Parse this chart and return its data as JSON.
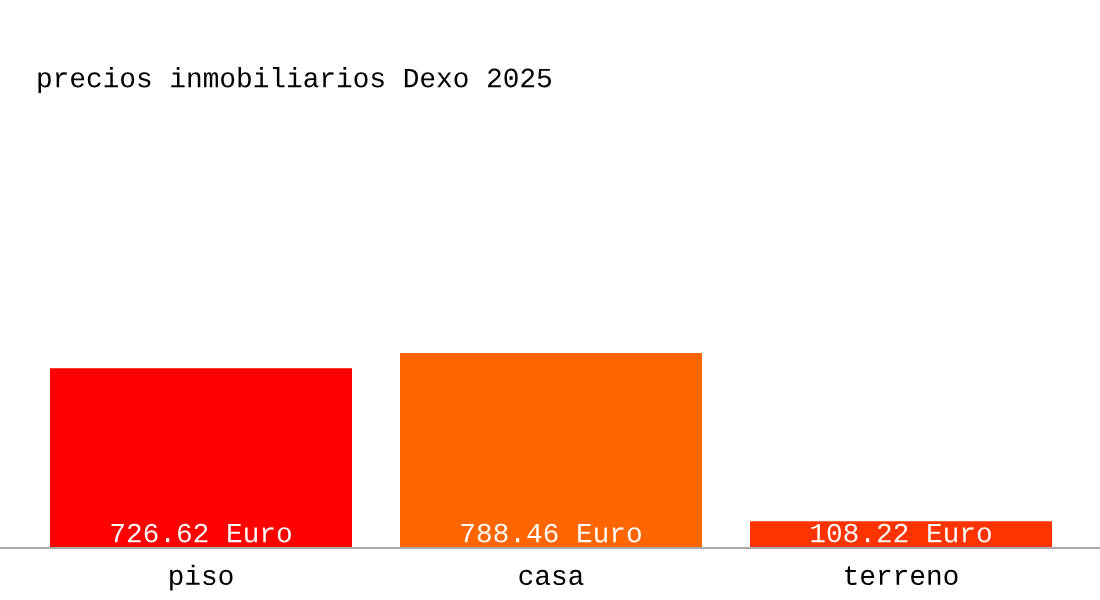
{
  "chart_data": {
    "type": "bar",
    "title": "precios inmobiliarios Dexo 2025",
    "categories": [
      "piso",
      "casa",
      "terreno"
    ],
    "values": [
      726.62,
      788.46,
      108.22
    ],
    "colors": [
      "#ff0000",
      "#ff6600",
      "#ff3300"
    ],
    "value_labels": [
      "726.62 Euro",
      "788.46 Euro",
      "108.22 Euro"
    ],
    "grid": false,
    "legend": false
  }
}
